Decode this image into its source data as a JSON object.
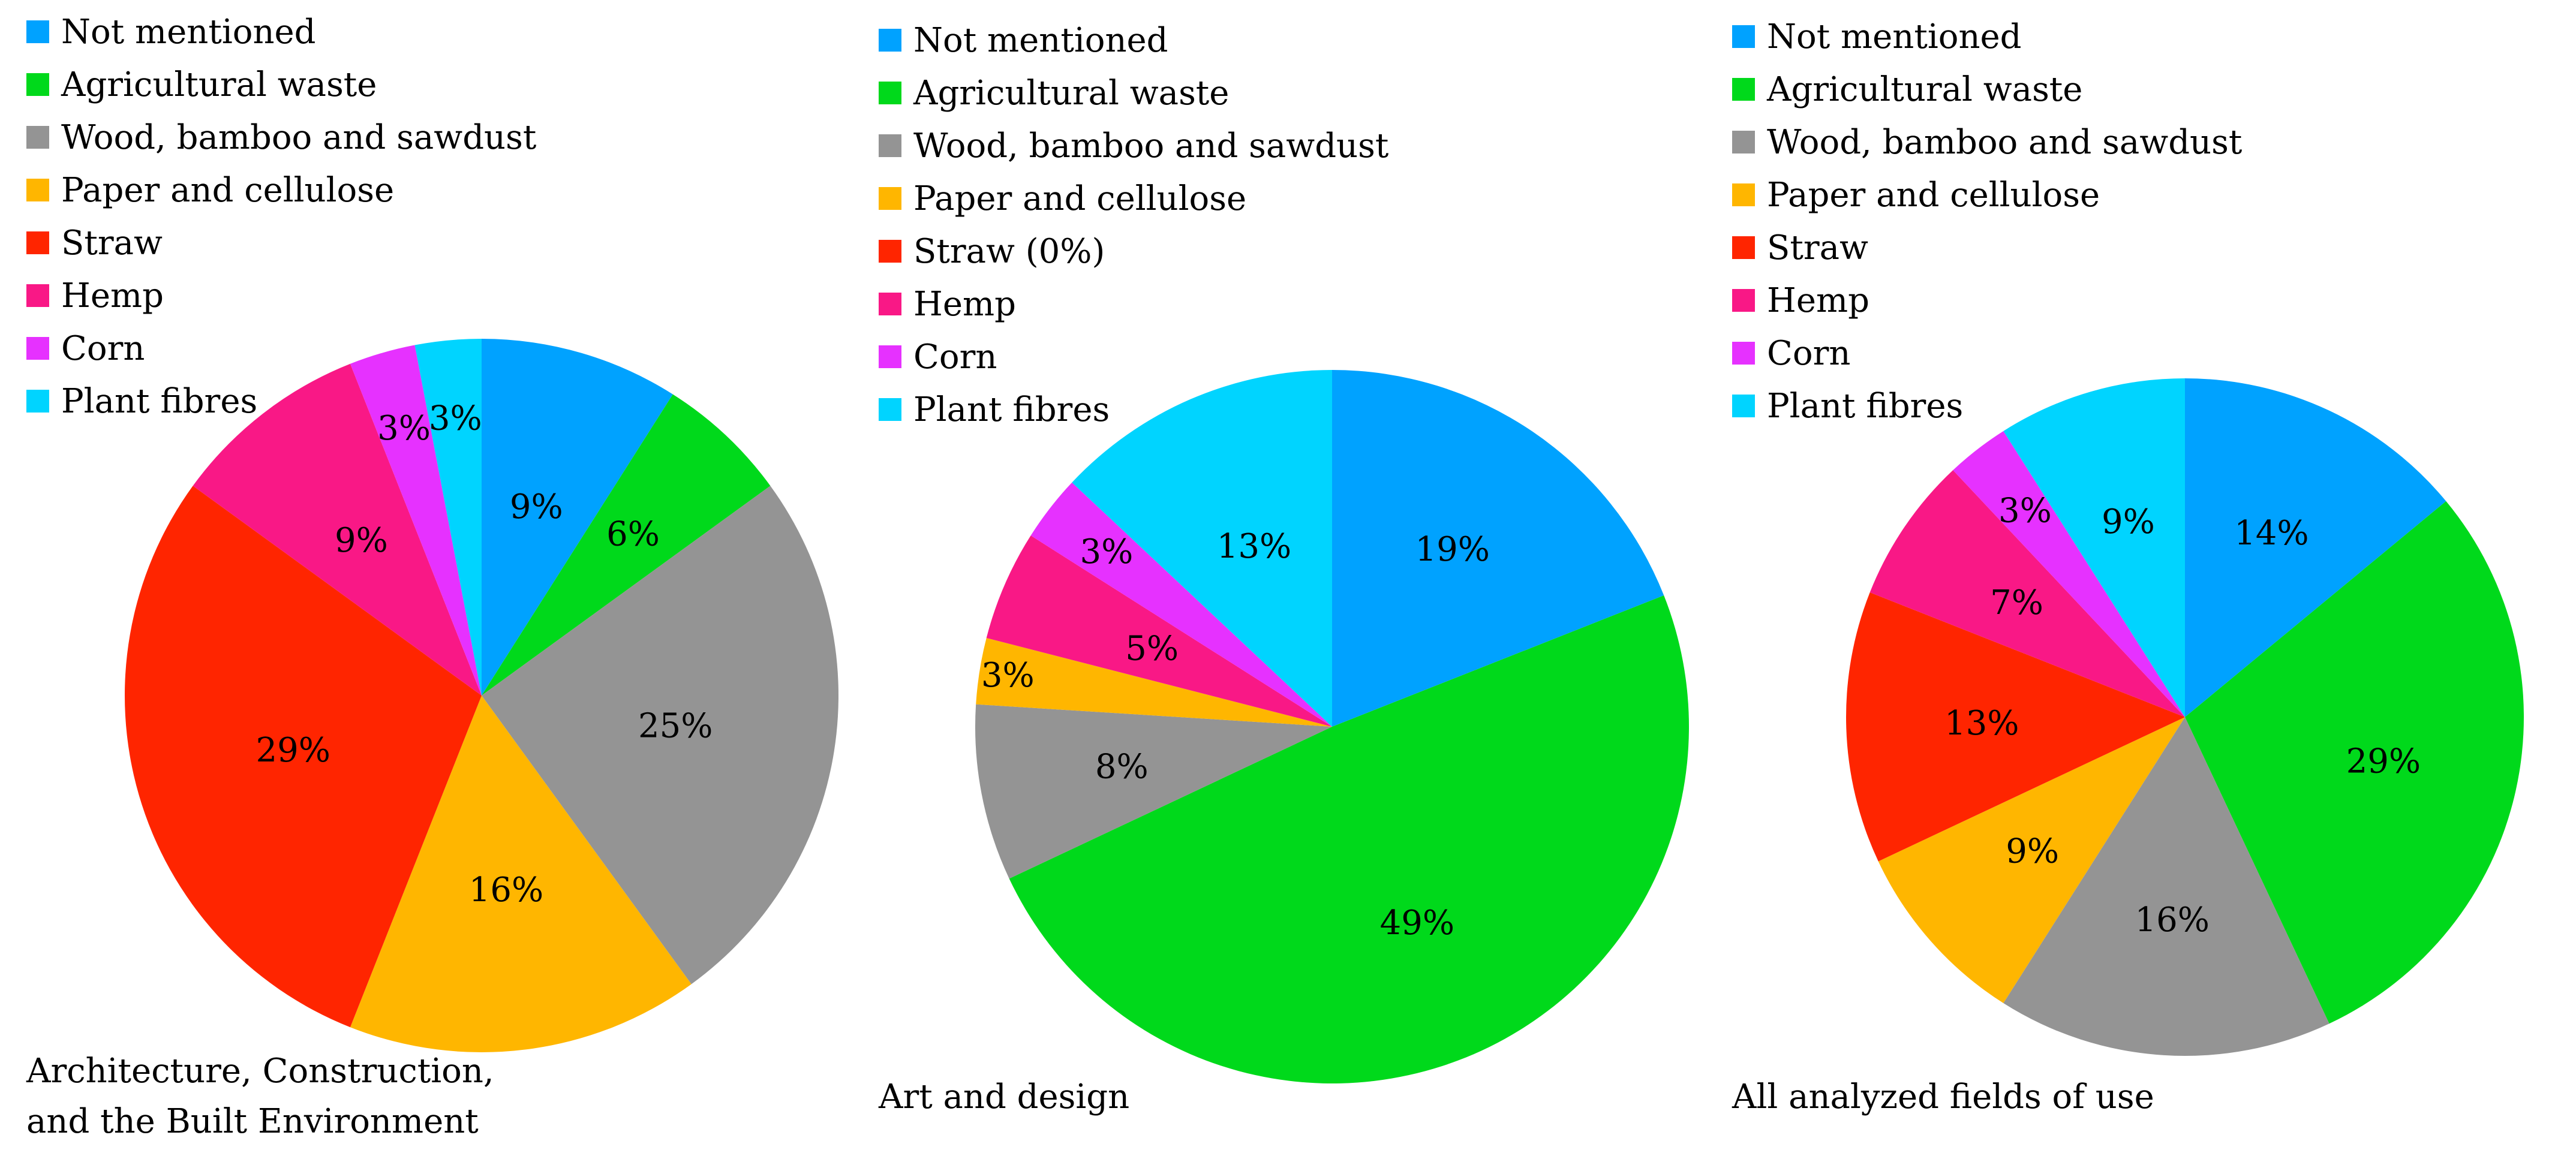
{
  "chart_data": [
    {
      "type": "pie",
      "title": "Architecture, Construction,\nand the Built Environment",
      "categories": [
        "Not mentioned",
        "Agricultural waste",
        "Wood, bamboo and sawdust",
        "Paper and cellulose",
        "Straw",
        "Hemp",
        "Corn",
        "Plant fibres"
      ],
      "legend": [
        "Not mentioned",
        "Agricultural waste",
        "Wood, bamboo and sawdust",
        "Paper and cellulose",
        "Straw",
        "Hemp",
        "Corn",
        "Plant fibres"
      ],
      "values": [
        9,
        6,
        25,
        16,
        29,
        9,
        3,
        3
      ],
      "labels": [
        "9%",
        "6%",
        "25%",
        "16%",
        "29%",
        "9%",
        "3%",
        "3%"
      ],
      "colors": [
        "#00a2ff",
        "#00d91b",
        "#949494",
        "#ffb600",
        "#ff2500",
        "#f91886",
        "#e631ff",
        "#00d4ff"
      ],
      "legend_position": "top-left"
    },
    {
      "type": "pie",
      "title": "Art and design",
      "categories": [
        "Not mentioned",
        "Agricultural waste",
        "Wood, bamboo and sawdust",
        "Paper and cellulose",
        "Straw",
        "Hemp",
        "Corn",
        "Plant fibres"
      ],
      "legend": [
        "Not mentioned",
        "Agricultural waste",
        "Wood, bamboo and sawdust",
        "Paper and cellulose",
        "Straw (0%)",
        "Hemp",
        "Corn",
        "Plant fibres"
      ],
      "values": [
        19,
        49,
        8,
        3,
        0,
        5,
        3,
        13
      ],
      "labels": [
        "19%",
        "49%",
        "8%",
        "3%",
        "0%",
        "5%",
        "3%",
        "13%"
      ],
      "colors": [
        "#00a2ff",
        "#00d91b",
        "#949494",
        "#ffb600",
        "#ff2500",
        "#f91886",
        "#e631ff",
        "#00d4ff"
      ],
      "legend_position": "top-left"
    },
    {
      "type": "pie",
      "title": "All analyzed fields of use",
      "categories": [
        "Not mentioned",
        "Agricultural waste",
        "Wood, bamboo and sawdust",
        "Paper and cellulose",
        "Straw",
        "Hemp",
        "Corn",
        "Plant fibres"
      ],
      "legend": [
        "Not mentioned",
        "Agricultural waste",
        "Wood, bamboo and sawdust",
        "Paper and cellulose",
        "Straw",
        "Hemp",
        "Corn",
        "Plant fibres"
      ],
      "values": [
        14,
        29,
        16,
        9,
        13,
        7,
        3,
        9
      ],
      "labels": [
        "14%",
        "29%",
        "16%",
        "9%",
        "13%",
        "7%",
        "3%",
        "9%"
      ],
      "colors": [
        "#00a2ff",
        "#00d91b",
        "#949494",
        "#ffb600",
        "#ff2500",
        "#f91886",
        "#e631ff",
        "#00d4ff"
      ],
      "legend_position": "top-left"
    }
  ]
}
